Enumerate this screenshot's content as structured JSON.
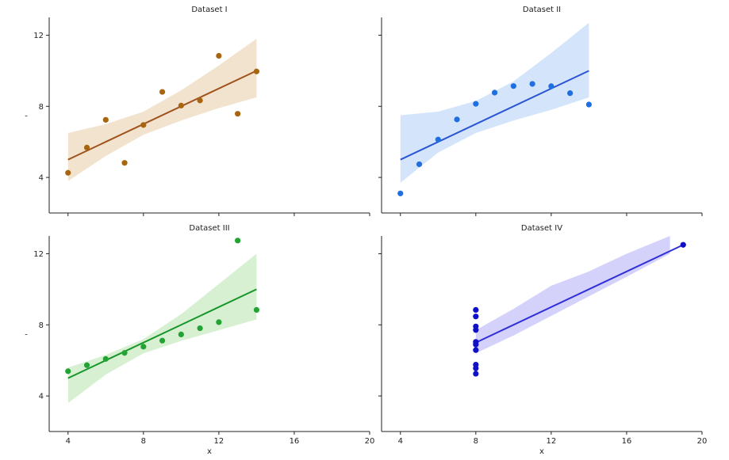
{
  "chart_data": [
    {
      "type": "scatter",
      "title": "Dataset I",
      "xlabel": "",
      "ylabel": "-",
      "xlim": [
        3,
        20
      ],
      "ylim": [
        2,
        13
      ],
      "xticks": [],
      "yticks": [
        "4",
        "8",
        "12"
      ],
      "colors": {
        "point": "#a8650f",
        "line": "#a0521d",
        "band": "#f2e3cf"
      },
      "points": [
        {
          "x": 4,
          "y": 4.26
        },
        {
          "x": 5,
          "y": 5.68
        },
        {
          "x": 6,
          "y": 7.24
        },
        {
          "x": 7,
          "y": 4.82
        },
        {
          "x": 8,
          "y": 6.95
        },
        {
          "x": 9,
          "y": 8.81
        },
        {
          "x": 10,
          "y": 8.04
        },
        {
          "x": 11,
          "y": 8.33
        },
        {
          "x": 12,
          "y": 10.84
        },
        {
          "x": 13,
          "y": 7.58
        },
        {
          "x": 14,
          "y": 9.96
        }
      ],
      "fit": {
        "x": [
          4,
          14
        ],
        "y": [
          5.0,
          10.0
        ]
      },
      "band": {
        "x": [
          4,
          6,
          8,
          10,
          12,
          14
        ],
        "upper": [
          6.5,
          7.0,
          7.7,
          8.9,
          10.3,
          11.8
        ],
        "lower": [
          3.8,
          5.2,
          6.4,
          7.2,
          7.9,
          8.5
        ]
      }
    },
    {
      "type": "scatter",
      "title": "Dataset II",
      "xlabel": "",
      "ylabel": "",
      "xlim": [
        3,
        20
      ],
      "ylim": [
        2,
        13
      ],
      "xticks": [],
      "yticks": [],
      "colors": {
        "point": "#1f6fe0",
        "line": "#2a55d4",
        "band": "#d4e5fb"
      },
      "points": [
        {
          "x": 4,
          "y": 3.1
        },
        {
          "x": 5,
          "y": 4.74
        },
        {
          "x": 6,
          "y": 6.13
        },
        {
          "x": 7,
          "y": 7.26
        },
        {
          "x": 8,
          "y": 8.14
        },
        {
          "x": 9,
          "y": 8.77
        },
        {
          "x": 10,
          "y": 9.14
        },
        {
          "x": 11,
          "y": 9.26
        },
        {
          "x": 12,
          "y": 9.13
        },
        {
          "x": 13,
          "y": 8.74
        },
        {
          "x": 14,
          "y": 8.1
        }
      ],
      "fit": {
        "x": [
          4,
          14
        ],
        "y": [
          5.0,
          10.0
        ]
      },
      "band": {
        "x": [
          4,
          6,
          8,
          10,
          12,
          14
        ],
        "upper": [
          7.5,
          7.7,
          8.3,
          9.4,
          11.0,
          12.7
        ],
        "lower": [
          3.7,
          5.4,
          6.5,
          7.2,
          7.8,
          8.5
        ]
      }
    },
    {
      "type": "scatter",
      "title": "Dataset III",
      "xlabel": "x",
      "ylabel": "-",
      "xlim": [
        3,
        20
      ],
      "ylim": [
        2,
        13
      ],
      "xticks": [
        "4",
        "8",
        "12",
        "16",
        "20"
      ],
      "yticks": [
        "4",
        "8",
        "12"
      ],
      "colors": {
        "point": "#23a334",
        "line": "#16962a",
        "band": "#d7f0d2"
      },
      "points": [
        {
          "x": 4,
          "y": 5.39
        },
        {
          "x": 5,
          "y": 5.73
        },
        {
          "x": 6,
          "y": 6.08
        },
        {
          "x": 7,
          "y": 6.42
        },
        {
          "x": 8,
          "y": 6.77
        },
        {
          "x": 9,
          "y": 7.11
        },
        {
          "x": 10,
          "y": 7.46
        },
        {
          "x": 11,
          "y": 7.81
        },
        {
          "x": 12,
          "y": 8.15
        },
        {
          "x": 13,
          "y": 12.74
        },
        {
          "x": 14,
          "y": 8.84
        }
      ],
      "fit": {
        "x": [
          4,
          14
        ],
        "y": [
          5.0,
          10.0
        ]
      },
      "band": {
        "x": [
          4,
          6,
          8,
          10,
          12,
          14
        ],
        "upper": [
          5.6,
          6.3,
          7.2,
          8.6,
          10.3,
          12.0
        ],
        "lower": [
          3.6,
          5.2,
          6.4,
          7.1,
          7.7,
          8.3
        ]
      }
    },
    {
      "type": "scatter",
      "title": "Dataset IV",
      "xlabel": "x",
      "ylabel": "",
      "xlim": [
        3,
        20
      ],
      "ylim": [
        2,
        13
      ],
      "xticks": [
        "4",
        "8",
        "12",
        "16",
        "20"
      ],
      "yticks": [],
      "colors": {
        "point": "#1010c8",
        "line": "#3030d8",
        "band": "#d4d2fb"
      },
      "points": [
        {
          "x": 8,
          "y": 6.58
        },
        {
          "x": 8,
          "y": 5.76
        },
        {
          "x": 8,
          "y": 7.71
        },
        {
          "x": 8,
          "y": 8.84
        },
        {
          "x": 8,
          "y": 8.47
        },
        {
          "x": 8,
          "y": 7.04
        },
        {
          "x": 8,
          "y": 5.25
        },
        {
          "x": 19,
          "y": 12.5
        },
        {
          "x": 8,
          "y": 5.56
        },
        {
          "x": 8,
          "y": 7.91
        },
        {
          "x": 8,
          "y": 6.89
        }
      ],
      "fit": {
        "x": [
          8,
          19
        ],
        "y": [
          7.0,
          12.5
        ]
      },
      "band": {
        "x": [
          8,
          10,
          12,
          14,
          16,
          18.3
        ],
        "upper": [
          7.7,
          8.9,
          10.2,
          11.0,
          12.0,
          13.0
        ],
        "lower": [
          6.4,
          7.4,
          8.5,
          9.6,
          10.7,
          12.0
        ]
      }
    }
  ]
}
